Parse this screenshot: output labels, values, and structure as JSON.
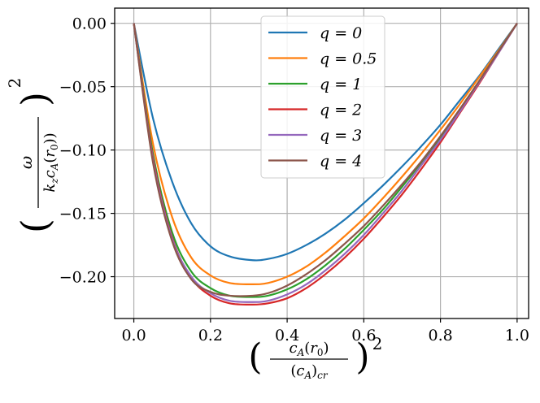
{
  "chart_data": {
    "type": "line",
    "title": "",
    "xlabel": "(c_A(r_0)/(c_A)_cr)^2",
    "ylabel": "(ω/(k_z c_A(r_0)))^2",
    "xlim": [
      -0.05,
      1.03
    ],
    "ylim": [
      -0.233,
      0.012
    ],
    "xticks": [
      0.0,
      0.2,
      0.4,
      0.6,
      0.8,
      1.0
    ],
    "xtick_labels": [
      "0.0",
      "0.2",
      "0.4",
      "0.6",
      "0.8",
      "1.0"
    ],
    "yticks": [
      0.0,
      -0.05,
      -0.1,
      -0.15,
      -0.2
    ],
    "ytick_labels": [
      "0.00",
      "−0.05",
      "−0.10",
      "−0.15",
      "−0.20"
    ],
    "grid": true,
    "legend_position": "upper-center",
    "series": [
      {
        "name": "q = 0",
        "color": "#1f77b4",
        "x": [
          0,
          0.05,
          0.1,
          0.15,
          0.2,
          0.25,
          0.31,
          0.35,
          0.4,
          0.45,
          0.5,
          0.55,
          0.6,
          0.65,
          0.7,
          0.75,
          0.8,
          0.85,
          0.9,
          0.95,
          1.0
        ],
        "y": [
          0,
          -0.075,
          -0.125,
          -0.158,
          -0.176,
          -0.184,
          -0.187,
          -0.186,
          -0.182,
          -0.175,
          -0.166,
          -0.155,
          -0.142,
          -0.128,
          -0.113,
          -0.097,
          -0.08,
          -0.061,
          -0.042,
          -0.021,
          0
        ]
      },
      {
        "name": "q = 0.5",
        "color": "#ff7f0e",
        "x": [
          0,
          0.05,
          0.1,
          0.15,
          0.2,
          0.25,
          0.31,
          0.35,
          0.4,
          0.45,
          0.5,
          0.55,
          0.6,
          0.65,
          0.7,
          0.75,
          0.8,
          0.85,
          0.9,
          0.95,
          1.0
        ],
        "y": [
          0,
          -0.095,
          -0.153,
          -0.185,
          -0.199,
          -0.205,
          -0.206,
          -0.205,
          -0.2,
          -0.192,
          -0.181,
          -0.168,
          -0.154,
          -0.138,
          -0.121,
          -0.103,
          -0.084,
          -0.064,
          -0.043,
          -0.022,
          0
        ]
      },
      {
        "name": "q = 1",
        "color": "#2ca02c",
        "x": [
          0,
          0.05,
          0.1,
          0.15,
          0.2,
          0.25,
          0.31,
          0.35,
          0.4,
          0.45,
          0.5,
          0.55,
          0.6,
          0.65,
          0.7,
          0.75,
          0.8,
          0.85,
          0.9,
          0.95,
          1.0
        ],
        "y": [
          0,
          -0.103,
          -0.165,
          -0.196,
          -0.209,
          -0.215,
          -0.216,
          -0.215,
          -0.21,
          -0.202,
          -0.191,
          -0.178,
          -0.163,
          -0.147,
          -0.129,
          -0.11,
          -0.09,
          -0.068,
          -0.046,
          -0.023,
          0
        ]
      },
      {
        "name": "q = 2",
        "color": "#d62728",
        "x": [
          0,
          0.05,
          0.1,
          0.15,
          0.2,
          0.25,
          0.31,
          0.35,
          0.4,
          0.45,
          0.5,
          0.55,
          0.6,
          0.65,
          0.7,
          0.75,
          0.8,
          0.85,
          0.9,
          0.95,
          1.0
        ],
        "y": [
          0,
          -0.106,
          -0.169,
          -0.201,
          -0.215,
          -0.221,
          -0.222,
          -0.221,
          -0.217,
          -0.209,
          -0.198,
          -0.185,
          -0.17,
          -0.153,
          -0.135,
          -0.115,
          -0.094,
          -0.071,
          -0.048,
          -0.024,
          0
        ]
      },
      {
        "name": "q = 3",
        "color": "#9467bd",
        "x": [
          0,
          0.05,
          0.1,
          0.15,
          0.2,
          0.25,
          0.31,
          0.35,
          0.4,
          0.45,
          0.5,
          0.55,
          0.6,
          0.65,
          0.7,
          0.75,
          0.8,
          0.85,
          0.9,
          0.95,
          1.0
        ],
        "y": [
          0,
          -0.108,
          -0.17,
          -0.2,
          -0.213,
          -0.219,
          -0.22,
          -0.219,
          -0.214,
          -0.206,
          -0.195,
          -0.182,
          -0.167,
          -0.15,
          -0.132,
          -0.112,
          -0.092,
          -0.07,
          -0.047,
          -0.024,
          0
        ]
      },
      {
        "name": "q = 4",
        "color": "#8c564b",
        "x": [
          0,
          0.05,
          0.1,
          0.15,
          0.2,
          0.25,
          0.31,
          0.35,
          0.4,
          0.45,
          0.5,
          0.55,
          0.6,
          0.65,
          0.7,
          0.75,
          0.8,
          0.85,
          0.9,
          0.95,
          1.0
        ],
        "y": [
          0,
          -0.11,
          -0.172,
          -0.202,
          -0.212,
          -0.215,
          -0.215,
          -0.213,
          -0.207,
          -0.198,
          -0.187,
          -0.174,
          -0.16,
          -0.144,
          -0.127,
          -0.109,
          -0.089,
          -0.068,
          -0.046,
          -0.023,
          0
        ]
      }
    ]
  }
}
